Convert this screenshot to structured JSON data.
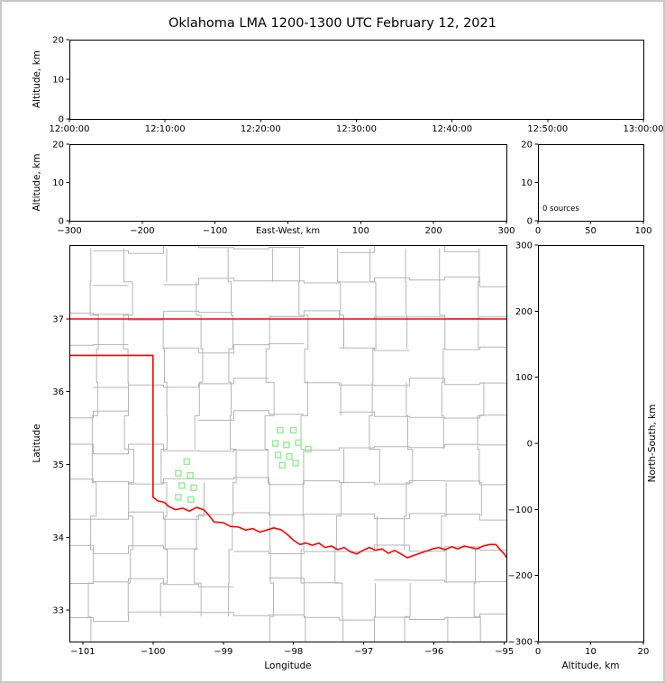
{
  "title": "Oklahoma LMA 1200-1300 UTC February 12, 2021",
  "colors": {
    "state_border": "#ff0000",
    "county_lines": "#b5b5b5",
    "station_marker": "#90ee90",
    "axes": "#000000",
    "background": "#ffffff"
  },
  "chart_data": [
    {
      "name": "time_height",
      "type": "scatter",
      "xlabel": "",
      "ylabel": "Altitude, km",
      "x_tick_labels": [
        "12:00:00",
        "12:10:00",
        "12:20:00",
        "12:30:00",
        "12:40:00",
        "12:50:00",
        "13:00:00"
      ],
      "y_ticks": [
        0,
        10,
        20
      ],
      "ylim": [
        0,
        20
      ],
      "points": []
    },
    {
      "name": "ew_altitude",
      "type": "scatter",
      "xlabel": "East-West, km",
      "ylabel": "Altitude, km",
      "x_ticks": [
        -300,
        -200,
        -100,
        0,
        100,
        200,
        300
      ],
      "y_ticks": [
        0,
        10,
        20
      ],
      "xlim": [
        -300,
        300
      ],
      "ylim": [
        0,
        20
      ],
      "points": []
    },
    {
      "name": "source_count",
      "type": "line",
      "annotation": "0 sources",
      "x_ticks": [
        0,
        50,
        100
      ],
      "y_ticks": [
        0,
        10,
        20
      ],
      "xlim": [
        0,
        100
      ],
      "ylim": [
        0,
        20
      ],
      "points": []
    },
    {
      "name": "plan_view",
      "type": "scatter",
      "xlabel": "Longitude",
      "ylabel": "Latitude",
      "x_ticks": [
        -101,
        -100,
        -99,
        -98,
        -97,
        -96,
        -95
      ],
      "y_ticks": [
        33,
        34,
        35,
        36,
        37
      ],
      "xlim": [
        -101.19,
        -94.97
      ],
      "ylim": [
        32.567,
        38.015
      ],
      "stations": [
        [
          -98.19,
          35.47
        ],
        [
          -98.0,
          35.47
        ],
        [
          -98.26,
          35.29
        ],
        [
          -98.1,
          35.27
        ],
        [
          -97.93,
          35.3
        ],
        [
          -97.79,
          35.21
        ],
        [
          -98.22,
          35.13
        ],
        [
          -98.06,
          35.11
        ],
        [
          -97.97,
          35.02
        ],
        [
          -98.16,
          34.99
        ],
        [
          -99.52,
          35.04
        ],
        [
          -99.64,
          34.88
        ],
        [
          -99.47,
          34.85
        ],
        [
          -99.59,
          34.71
        ],
        [
          -99.42,
          34.68
        ],
        [
          -99.64,
          34.55
        ],
        [
          -99.46,
          34.52
        ]
      ],
      "state_border": {
        "north": [
          [
            -101.19,
            37.0
          ],
          [
            -94.97,
            37.0
          ]
        ],
        "west_south": [
          [
            -101.19,
            36.5
          ],
          [
            -100.0,
            36.5
          ],
          [
            -100.0,
            34.55
          ],
          [
            -99.93,
            34.5
          ],
          [
            -99.84,
            34.48
          ],
          [
            -99.77,
            34.42
          ],
          [
            -99.68,
            34.38
          ],
          [
            -99.58,
            34.4
          ],
          [
            -99.48,
            34.36
          ],
          [
            -99.38,
            34.41
          ],
          [
            -99.28,
            34.38
          ],
          [
            -99.22,
            34.32
          ],
          [
            -99.13,
            34.21
          ],
          [
            -99.0,
            34.2
          ],
          [
            -98.9,
            34.15
          ],
          [
            -98.78,
            34.14
          ],
          [
            -98.68,
            34.1
          ],
          [
            -98.58,
            34.12
          ],
          [
            -98.48,
            34.07
          ],
          [
            -98.38,
            34.1
          ],
          [
            -98.28,
            34.13
          ],
          [
            -98.17,
            34.1
          ],
          [
            -98.09,
            34.04
          ],
          [
            -98.0,
            33.96
          ],
          [
            -97.91,
            33.9
          ],
          [
            -97.82,
            33.92
          ],
          [
            -97.73,
            33.89
          ],
          [
            -97.64,
            33.92
          ],
          [
            -97.55,
            33.86
          ],
          [
            -97.46,
            33.88
          ],
          [
            -97.37,
            33.83
          ],
          [
            -97.28,
            33.86
          ],
          [
            -97.19,
            33.8
          ],
          [
            -97.1,
            33.77
          ],
          [
            -97.01,
            33.82
          ],
          [
            -96.92,
            33.86
          ],
          [
            -96.83,
            33.82
          ],
          [
            -96.74,
            33.84
          ],
          [
            -96.65,
            33.78
          ],
          [
            -96.56,
            33.82
          ],
          [
            -96.47,
            33.77
          ],
          [
            -96.38,
            33.72
          ],
          [
            -96.29,
            33.75
          ],
          [
            -96.2,
            33.78
          ],
          [
            -96.11,
            33.81
          ],
          [
            -96.02,
            33.84
          ],
          [
            -95.93,
            33.86
          ],
          [
            -95.84,
            33.83
          ],
          [
            -95.75,
            33.87
          ],
          [
            -95.66,
            33.84
          ],
          [
            -95.57,
            33.88
          ],
          [
            -95.48,
            33.86
          ],
          [
            -95.39,
            33.84
          ],
          [
            -95.3,
            33.88
          ],
          [
            -95.21,
            33.9
          ],
          [
            -95.12,
            33.9
          ],
          [
            -95.05,
            33.82
          ],
          [
            -94.99,
            33.76
          ],
          [
            -94.97,
            33.72
          ]
        ]
      },
      "counties": {
        "lon_start": -101.35,
        "lon_step": 0.5,
        "lon_end": -94.85,
        "lat_start": 32.45,
        "lat_step": 0.46,
        "lat_end": 38.15,
        "jitter": 0.16,
        "skip": 0.12,
        "seed": 20210212
      }
    },
    {
      "name": "ns_altitude",
      "type": "scatter",
      "xlabel": "Altitude, km",
      "ylabel": "North-South, km",
      "x_ticks": [
        0,
        10,
        20
      ],
      "y_ticks": [
        -300,
        -200,
        -100,
        0,
        100,
        200,
        300
      ],
      "xlim": [
        0,
        20
      ],
      "ylim": [
        -300,
        300
      ],
      "points": []
    }
  ]
}
